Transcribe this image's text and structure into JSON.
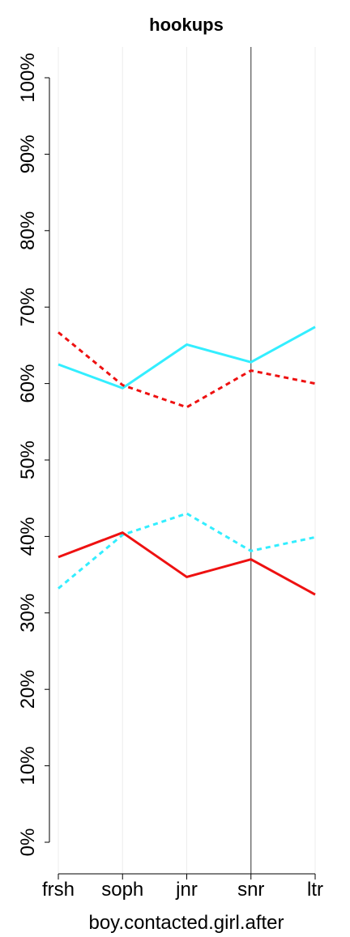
{
  "chart_data": {
    "type": "line",
    "title": "hookups",
    "xlabel": "boy.contacted.girl.after",
    "ylabel": "",
    "categories": [
      "frsh",
      "soph",
      "jnr",
      "snr",
      "ltr"
    ],
    "ylim": [
      0,
      100
    ],
    "y_ticks": [
      0,
      10,
      20,
      30,
      40,
      50,
      60,
      70,
      80,
      90,
      100
    ],
    "y_tick_labels": [
      "0%",
      "10%",
      "20%",
      "30%",
      "40%",
      "50%",
      "60%",
      "70%",
      "80%",
      "90%",
      "100%"
    ],
    "grid": "vertical",
    "reference_line_category": "snr",
    "series": [
      {
        "color": "#33eeff",
        "dash": "solid",
        "values": [
          62.5,
          59.4,
          65.1,
          62.8,
          67.4
        ]
      },
      {
        "color": "#ee1111",
        "dash": "dashed",
        "values": [
          66.7,
          59.8,
          56.9,
          61.7,
          60.0
        ]
      },
      {
        "color": "#33eeff",
        "dash": "dashed",
        "values": [
          33.2,
          40.2,
          43.0,
          38.1,
          39.9
        ]
      },
      {
        "color": "#ee1111",
        "dash": "solid",
        "values": [
          37.3,
          40.5,
          34.7,
          37.0,
          32.4
        ]
      }
    ]
  }
}
